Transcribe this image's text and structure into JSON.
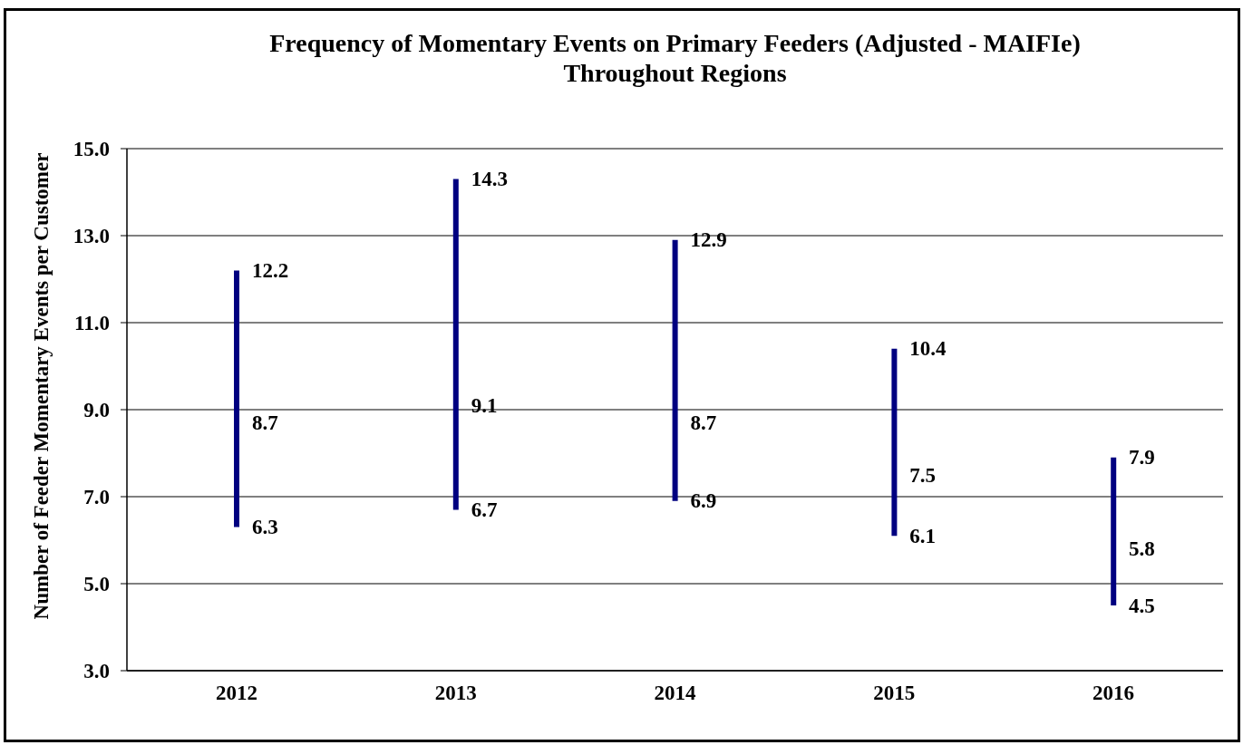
{
  "chart_data": {
    "type": "bar",
    "title": "Frequency of Momentary Events on Primary Feeders (Adjusted - MAIFIe)",
    "subtitle": "Throughout Regions",
    "ylabel": "Number of Feeder Momentary Events per Customer",
    "categories": [
      "2012",
      "2013",
      "2014",
      "2015",
      "2016"
    ],
    "base": [
      6.3,
      6.7,
      6.9,
      6.1,
      4.5
    ],
    "values": [
      5.9,
      7.6,
      6.0,
      4.3,
      3.4
    ],
    "color": "#000080",
    "ylim": [
      3,
      15
    ],
    "yticks": [
      {
        "value": 3,
        "label": "3.0"
      },
      {
        "value": 5,
        "label": "5.0"
      },
      {
        "value": 7,
        "label": "7.0"
      },
      {
        "value": 9,
        "label": "9.0"
      },
      {
        "value": 11,
        "label": "11.0"
      },
      {
        "value": 13,
        "label": "13.0"
      },
      {
        "value": 15,
        "label": "15.0"
      }
    ],
    "grid": "y",
    "annotations": [
      {
        "text": "12.2",
        "x": "2012",
        "y": 12.2
      },
      {
        "text": "8.7",
        "x": "2012",
        "y": 8.7
      },
      {
        "text": "6.3",
        "x": "2012",
        "y": 6.3
      },
      {
        "text": "14.3",
        "x": "2013",
        "y": 14.3
      },
      {
        "text": "9.1",
        "x": "2013",
        "y": 9.1
      },
      {
        "text": "6.7",
        "x": "2013",
        "y": 6.7
      },
      {
        "text": "12.9",
        "x": "2014",
        "y": 12.9
      },
      {
        "text": "8.7",
        "x": "2014",
        "y": 8.7
      },
      {
        "text": "6.9",
        "x": "2014",
        "y": 6.9
      },
      {
        "text": "10.4",
        "x": "2015",
        "y": 10.4
      },
      {
        "text": "7.5",
        "x": "2015",
        "y": 7.5
      },
      {
        "text": "6.1",
        "x": "2015",
        "y": 6.1
      },
      {
        "text": "7.9",
        "x": "2016",
        "y": 7.9
      },
      {
        "text": "5.8",
        "x": "2016",
        "y": 5.8
      },
      {
        "text": "4.5",
        "x": "2016",
        "y": 4.5
      }
    ]
  }
}
